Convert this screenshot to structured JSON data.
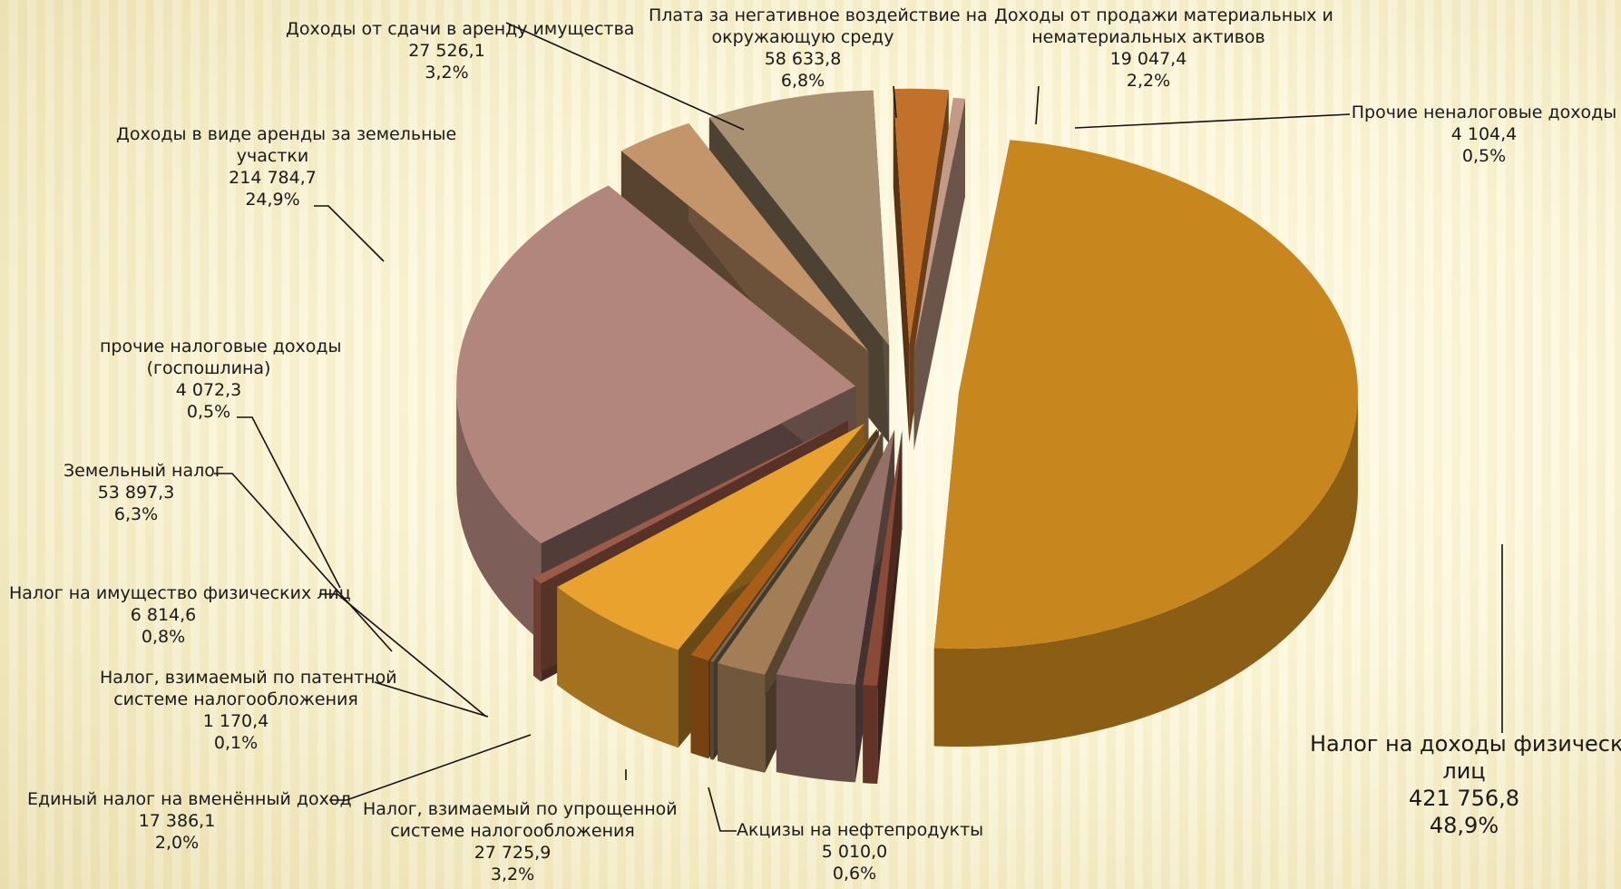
{
  "chart_data": {
    "type": "pie",
    "title": "",
    "unit": "",
    "slices": [
      {
        "name": "Налог на доходы физических лиц",
        "value_text": "421 756,8",
        "value": 421756.8,
        "percent_text": "48,9%",
        "percent": 48.9,
        "color": "#c8861e"
      },
      {
        "name": "Акцизы на нефтепродукты",
        "value_text": "5 010,0",
        "value": 5010.0,
        "percent_text": "0,6%",
        "percent": 0.6,
        "color": "#8a4a38"
      },
      {
        "name": "Налог, взимаемый по упрощенной системе налогообложения",
        "value_text": "27 725,9",
        "value": 27725.9,
        "percent_text": "3,2%",
        "percent": 3.2,
        "color": "#957068"
      },
      {
        "name": "Единый налог на вменённый доход",
        "value_text": "17 386,1",
        "value": 17386.1,
        "percent_text": "2,0%",
        "percent": 2.0,
        "color": "#a27d56"
      },
      {
        "name": "Налог, взимаемый по патентной системе налогообложения",
        "value_text": "1 170,4",
        "value": 1170.4,
        "percent_text": "0,1%",
        "percent": 0.1,
        "color": "#7a6a50"
      },
      {
        "name": "Налог на имущество физических лиц",
        "value_text": "6 814,6",
        "value": 6814.6,
        "percent_text": "0,8%",
        "percent": 0.8,
        "color": "#a85e18"
      },
      {
        "name": "Земельный налог",
        "value_text": "53 897,3",
        "value": 53897.3,
        "percent_text": "6,3%",
        "percent": 6.3,
        "color": "#e9a22e"
      },
      {
        "name": "прочие налоговые доходы (госпошлина)",
        "value_text": "4 072,3",
        "value": 4072.3,
        "percent_text": "0,5%",
        "percent": 0.5,
        "color": "#9c5a48"
      },
      {
        "name": "Доходы в виде аренды за земельные участки",
        "value_text": "214 784,7",
        "value": 214784.7,
        "percent_text": "24,9%",
        "percent": 24.9,
        "color": "#b2867d"
      },
      {
        "name": "Доходы от сдачи в аренду имущества",
        "value_text": "27 526,1",
        "value": 27526.1,
        "percent_text": "3,2%",
        "percent": 3.2,
        "color": "#c4946a"
      },
      {
        "name": "Плата за негативное воздействие на окружающую среду",
        "value_text": "58 633,8",
        "value": 58633.8,
        "percent_text": "6,8%",
        "percent": 6.8,
        "color": "#a89072"
      },
      {
        "name": "Доходы от продажи материальных и нематериальных активов",
        "value_text": "19 047,4",
        "value": 19047.4,
        "percent_text": "2,2%",
        "percent": 2.2,
        "color": "#c2702a"
      },
      {
        "name": "Прочие неналоговые доходы",
        "value_text": "4 104,4",
        "value": 4104.4,
        "percent_text": "0,5%",
        "percent": 0.5,
        "color": "#c29a86"
      }
    ],
    "labels": [
      {
        "lines": [
          "Налог на доходы физических",
          "лиц"
        ],
        "value": "421 756,8",
        "percent": "48,9%"
      },
      {
        "lines": [
          "Акцизы на нефтепродукты"
        ],
        "value": "5 010,0",
        "percent": "0,6%"
      },
      {
        "lines": [
          "Налог, взимаемый по упрощенной",
          "системе налогообложения"
        ],
        "value": "27 725,9",
        "percent": "3,2%"
      },
      {
        "lines": [
          "Единый налог на вменённый доход"
        ],
        "value": "17 386,1",
        "percent": "2,0%"
      },
      {
        "lines": [
          "Налог, взимаемый по патентной",
          "системе налогообложения"
        ],
        "value": "1 170,4",
        "percent": "0,1%"
      },
      {
        "lines": [
          "Налог на имущество физических лиц"
        ],
        "value": "6 814,6",
        "percent": "0,8%"
      },
      {
        "lines": [
          "Земельный налог"
        ],
        "value": "53 897,3",
        "percent": "6,3%"
      },
      {
        "lines": [
          "прочие налоговые доходы",
          "(госпошлина)"
        ],
        "value": "4 072,3",
        "percent": "0,5%"
      },
      {
        "lines": [
          "Доходы в виде аренды за земельные",
          "участки"
        ],
        "value": "214 784,7",
        "percent": "24,9%"
      },
      {
        "lines": [
          "Доходы от сдачи в аренду имущества"
        ],
        "value": "27 526,1",
        "percent": "3,2%"
      },
      {
        "lines": [
          "Плата за негативное воздействие на",
          "окружающую среду"
        ],
        "value": "58 633,8",
        "percent": "6,8%"
      },
      {
        "lines": [
          "Доходы от продажи материальных и",
          "нематериальных активов"
        ],
        "value": "19 047,4",
        "percent": "2,2%"
      },
      {
        "lines": [
          "Прочие неналоговые доходы"
        ],
        "value": "4 104,4",
        "percent": "0,5%"
      }
    ]
  }
}
